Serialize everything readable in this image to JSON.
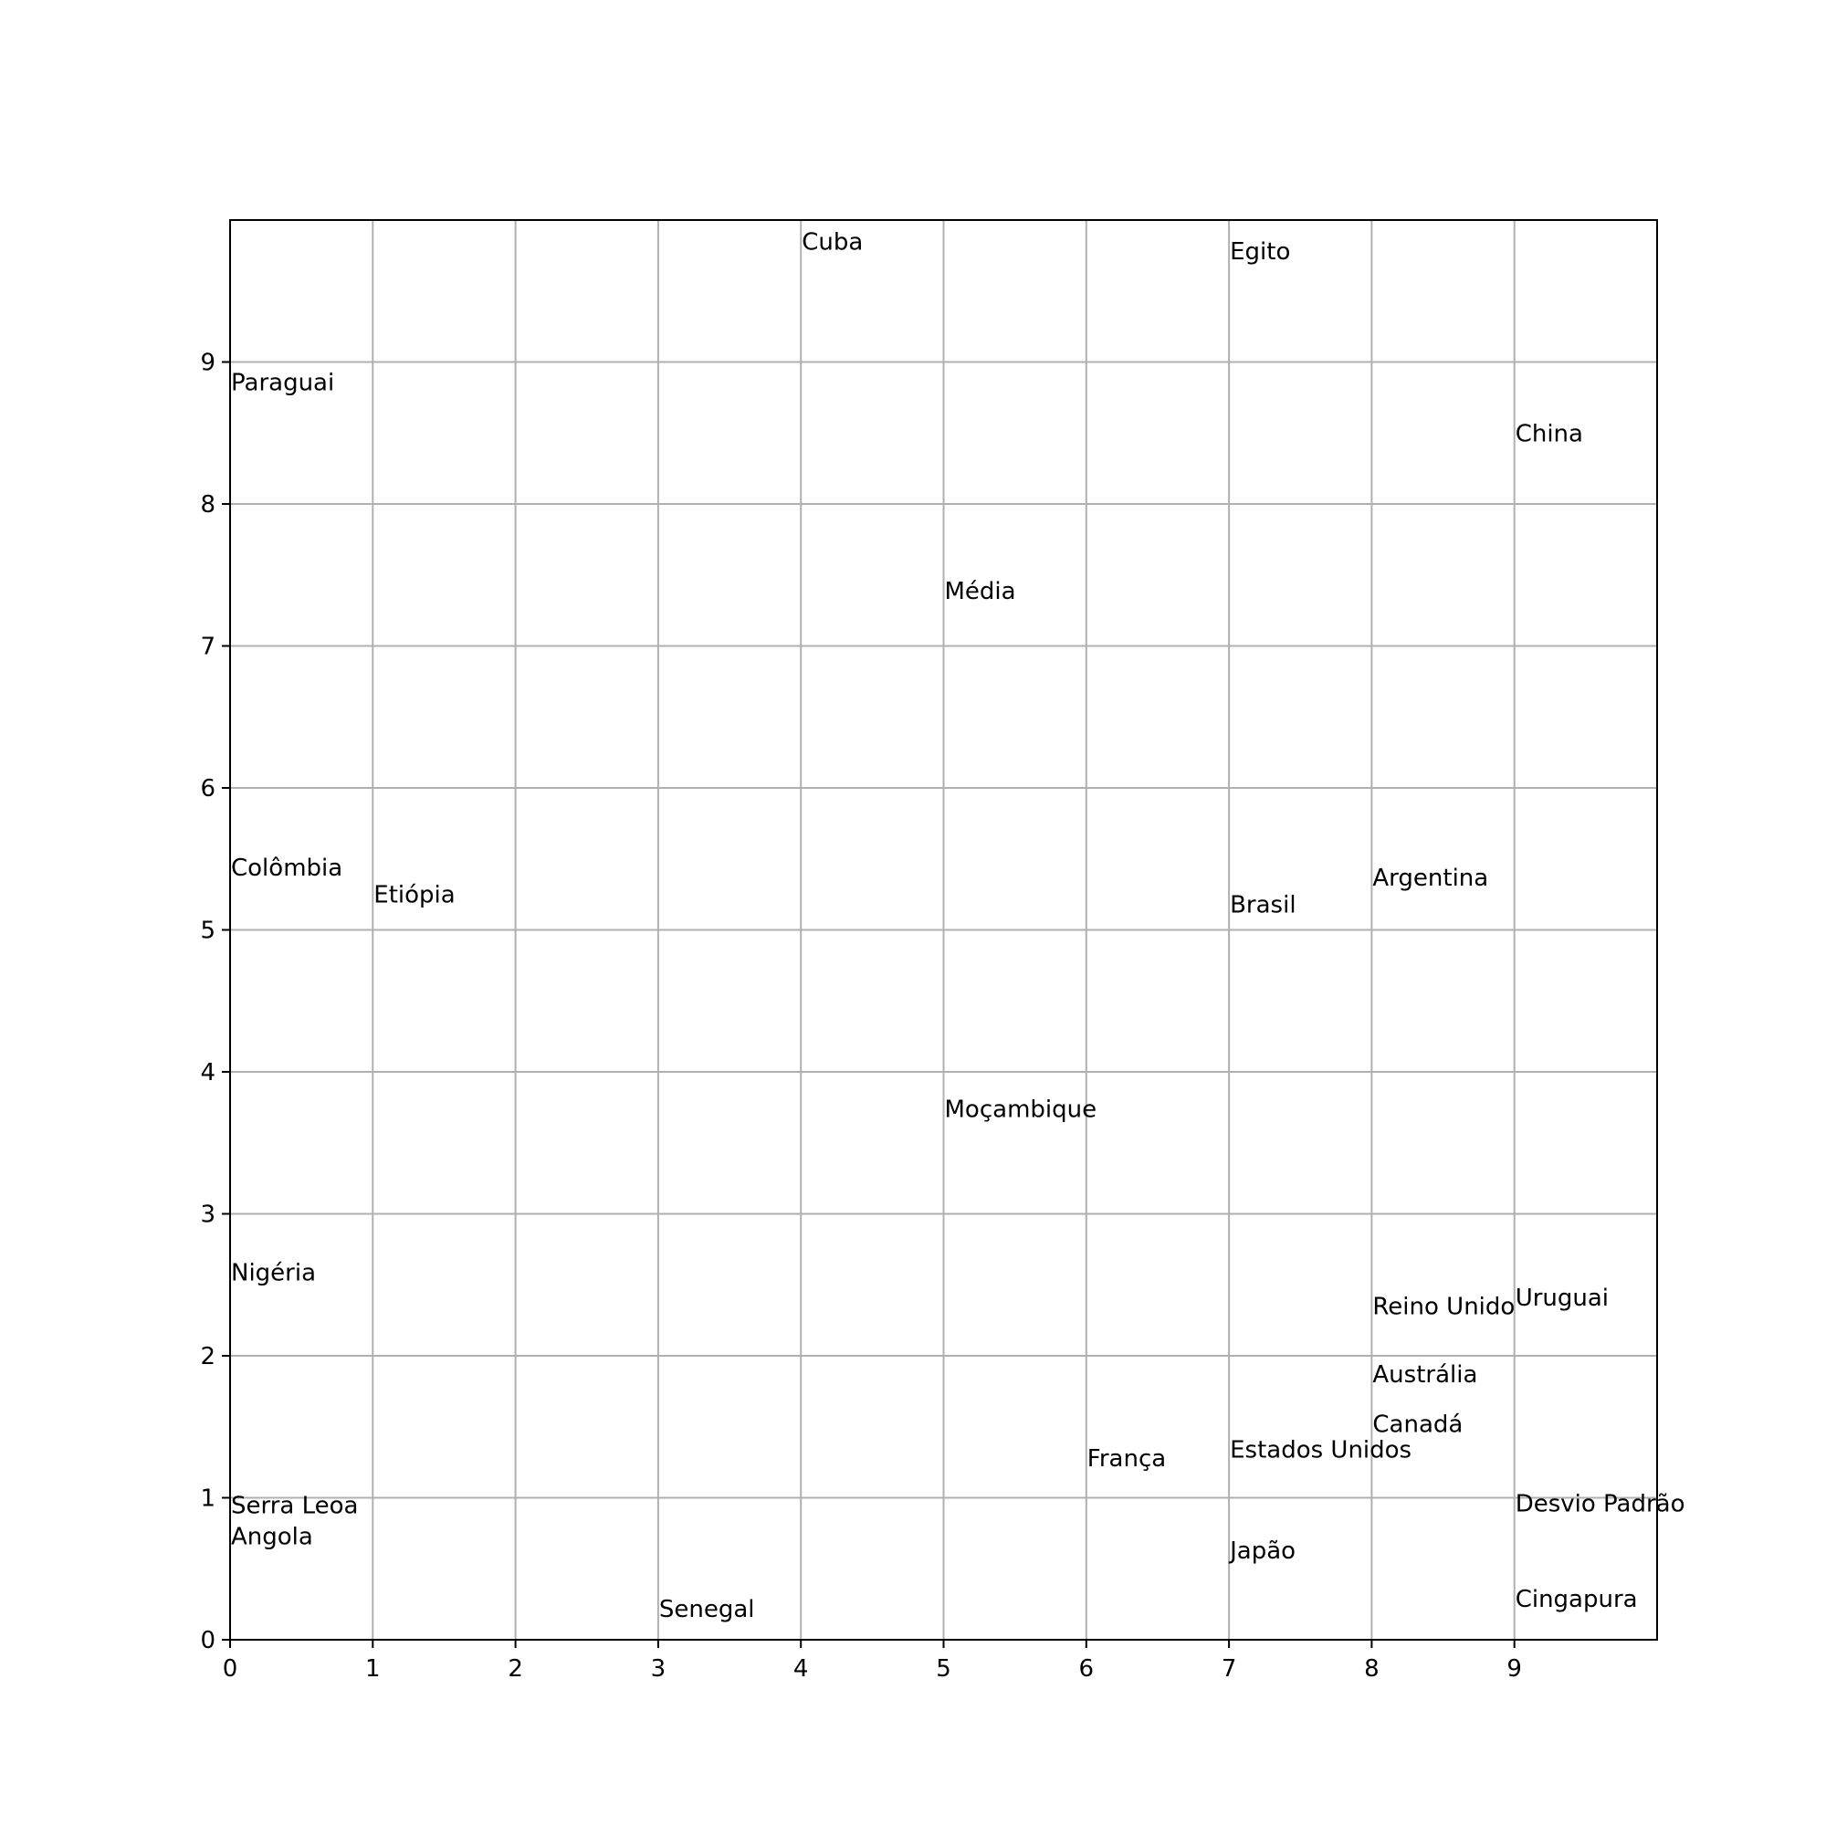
{
  "colors": {
    "grid": "#b0b0b0",
    "axis": "#000000",
    "text": "#000000",
    "background": "#ffffff"
  },
  "chart_data": {
    "type": "scatter",
    "title": "",
    "xlabel": "",
    "ylabel": "",
    "xlim": [
      0,
      10
    ],
    "ylim": [
      0,
      10
    ],
    "grid": true,
    "marker": "none",
    "xticks": [
      0,
      1,
      2,
      3,
      4,
      5,
      6,
      7,
      8,
      9
    ],
    "yticks": [
      0,
      1,
      2,
      3,
      4,
      5,
      6,
      7,
      8,
      9
    ],
    "points": [
      {
        "label": "Cuba",
        "x": 4,
        "y": 9.85
      },
      {
        "label": "Egito",
        "x": 7,
        "y": 9.78
      },
      {
        "label": "Paraguai",
        "x": 0,
        "y": 8.86
      },
      {
        "label": "China",
        "x": 9,
        "y": 8.5
      },
      {
        "label": "Média",
        "x": 5,
        "y": 7.39
      },
      {
        "label": "Colômbia",
        "x": 0,
        "y": 5.44
      },
      {
        "label": "Etiópia",
        "x": 1,
        "y": 5.25
      },
      {
        "label": "Argentina",
        "x": 8,
        "y": 5.37
      },
      {
        "label": "Brasil",
        "x": 7,
        "y": 5.18
      },
      {
        "label": "Moçambique",
        "x": 5,
        "y": 3.74
      },
      {
        "label": "Nigéria",
        "x": 0,
        "y": 2.59
      },
      {
        "label": "Reino Unido",
        "x": 8,
        "y": 2.35
      },
      {
        "label": "Uruguai",
        "x": 9,
        "y": 2.41
      },
      {
        "label": "Austrália",
        "x": 8,
        "y": 1.87
      },
      {
        "label": "Canadá",
        "x": 8,
        "y": 1.52
      },
      {
        "label": "Estados Unidos",
        "x": 7,
        "y": 1.34
      },
      {
        "label": "França",
        "x": 6,
        "y": 1.28
      },
      {
        "label": "Serra Leoa",
        "x": 0,
        "y": 0.95
      },
      {
        "label": "Desvio Padrão",
        "x": 9,
        "y": 0.96
      },
      {
        "label": "Angola",
        "x": 0,
        "y": 0.73
      },
      {
        "label": "Japão",
        "x": 7,
        "y": 0.63
      },
      {
        "label": "Cingapura",
        "x": 9,
        "y": 0.29
      },
      {
        "label": "Senegal",
        "x": 3,
        "y": 0.22
      }
    ]
  }
}
